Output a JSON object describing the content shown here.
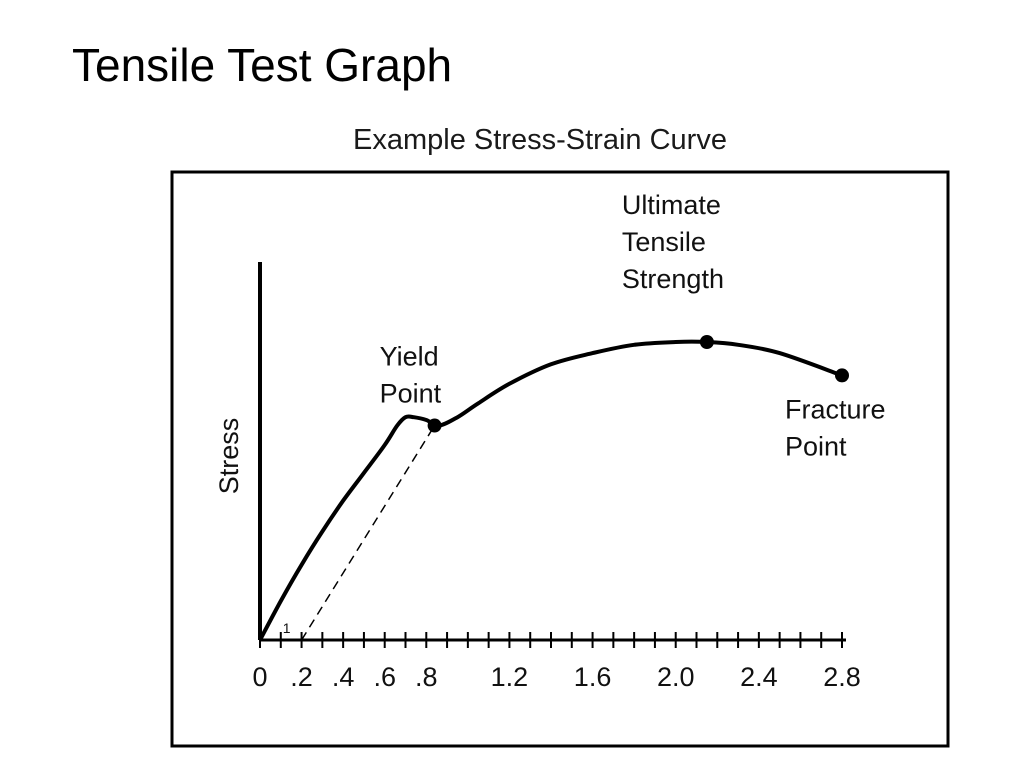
{
  "slide": {
    "title": "Tensile Test Graph"
  },
  "chart_data": {
    "type": "line",
    "title": "Example Stress-Strain Curve",
    "xlabel": "",
    "ylabel": "Stress",
    "xlim": [
      0,
      2.8
    ],
    "x_ticks": [
      0,
      0.1,
      0.2,
      0.3,
      0.4,
      0.5,
      0.6,
      0.7,
      0.8,
      0.9,
      1.0,
      1.1,
      1.2,
      1.3,
      1.4,
      1.5,
      1.6,
      1.7,
      1.8,
      1.9,
      2.0,
      2.1,
      2.2,
      2.3,
      2.4,
      2.5,
      2.6,
      2.7,
      2.8
    ],
    "x_tick_labels": [
      {
        "x": 0,
        "label": "0"
      },
      {
        "x": 0.2,
        "label": ".2"
      },
      {
        "x": 0.4,
        "label": ".4"
      },
      {
        "x": 0.6,
        "label": ".6"
      },
      {
        "x": 0.8,
        "label": ".8"
      },
      {
        "x": 1.2,
        "label": "1.2"
      },
      {
        "x": 1.6,
        "label": "1.6"
      },
      {
        "x": 2.0,
        "label": "2.0"
      },
      {
        "x": 2.4,
        "label": "2.4"
      },
      {
        "x": 2.8,
        "label": "2.8"
      }
    ],
    "grid": false,
    "legend": "none",
    "series": [
      {
        "x": [
          0,
          0.1,
          0.2,
          0.3,
          0.4,
          0.5,
          0.6,
          0.66,
          0.7,
          0.74,
          0.8,
          0.86,
          0.95,
          1.05,
          1.2,
          1.4,
          1.6,
          1.8,
          2.0,
          2.15,
          2.3,
          2.5,
          2.8
        ],
        "y": [
          0,
          0.14,
          0.27,
          0.39,
          0.5,
          0.6,
          0.7,
          0.77,
          0.8,
          0.8,
          0.79,
          0.77,
          0.8,
          0.85,
          0.92,
          0.99,
          1.03,
          1.06,
          1.07,
          1.07,
          1.06,
          1.03,
          0.95
        ]
      }
    ],
    "offset_line": {
      "x": [
        0.2,
        0.84
      ],
      "y": [
        0,
        0.77
      ]
    },
    "slope_label": {
      "text": "1",
      "x": 0.1,
      "y": 0.04
    },
    "points": [
      {
        "name": "Yield Point",
        "lines": [
          "Yield",
          "Point"
        ],
        "x": 0.84,
        "y": 0.77,
        "label_side": "above-left"
      },
      {
        "name": "Ultimate Tensile Strength",
        "lines": [
          "Ultimate",
          "Tensile",
          "Strength"
        ],
        "x": 2.15,
        "y": 1.07,
        "label_side": "above"
      },
      {
        "name": "Fracture Point",
        "lines": [
          "Fracture",
          "Point"
        ],
        "x": 2.8,
        "y": 0.95,
        "label_side": "below"
      }
    ],
    "colors": {
      "curve": "#000000",
      "frame": "#000000"
    }
  }
}
